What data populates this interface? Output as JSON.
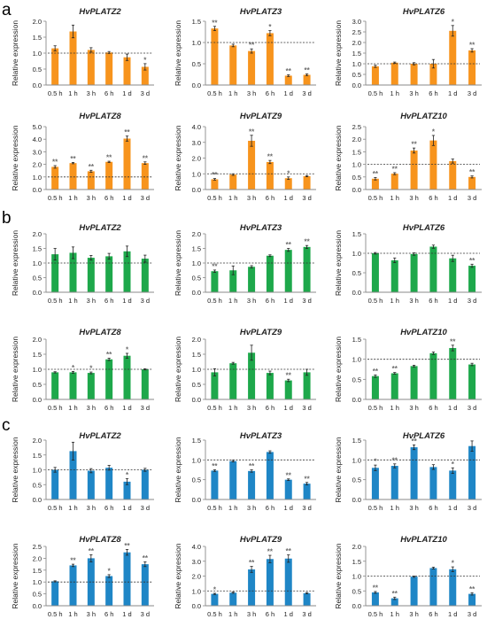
{
  "figure": {
    "panel_labels": [
      "a",
      "b",
      "c"
    ],
    "panel_colors": [
      "#F7941D",
      "#1EA84B",
      "#1F86C6"
    ],
    "ylabel": "Relative expression",
    "categories": [
      "0.5 h",
      "1 h",
      "3 h",
      "6 h",
      "1 d",
      "3 d"
    ],
    "reference_line": 1.0
  },
  "chart_data": [
    {
      "type": "bar",
      "panel": "a",
      "title": "HvPLATZ2",
      "ylabel": "Relative expression",
      "categories": [
        "0.5 h",
        "1 h",
        "3 h",
        "6 h",
        "1 d",
        "3 d"
      ],
      "ylim": [
        0,
        2.0
      ],
      "yticks": [
        "0.0",
        "0.5",
        "1.0",
        "1.5",
        "2.0"
      ],
      "values": [
        1.15,
        1.68,
        1.1,
        1.02,
        0.87,
        0.57
      ],
      "errors": [
        0.08,
        0.2,
        0.07,
        0.03,
        0.1,
        0.1
      ],
      "significance": [
        "",
        "",
        "",
        "",
        "",
        "*"
      ]
    },
    {
      "type": "bar",
      "panel": "a",
      "title": "HvPLATZ3",
      "ylabel": "Relative expression",
      "categories": [
        "0.5 h",
        "1 h",
        "3 h",
        "6 h",
        "1 d",
        "3 d"
      ],
      "ylim": [
        0,
        1.5
      ],
      "yticks": [
        "0.0",
        "0.5",
        "1.0",
        "1.5"
      ],
      "values": [
        1.33,
        0.93,
        0.8,
        1.22,
        0.22,
        0.24
      ],
      "errors": [
        0.05,
        0.03,
        0.05,
        0.06,
        0.02,
        0.02
      ],
      "significance": [
        "**",
        "",
        "**",
        "*",
        "**",
        "**"
      ]
    },
    {
      "type": "bar",
      "panel": "a",
      "title": "HvPLATZ6",
      "ylabel": "Relative expression",
      "categories": [
        "0.5 h",
        "1 h",
        "3 h",
        "6 h",
        "1 d",
        "3 d"
      ],
      "ylim": [
        0,
        3.0
      ],
      "yticks": [
        "0.0",
        "0.5",
        "1.0",
        "1.5",
        "2.0",
        "2.5",
        "3.0"
      ],
      "values": [
        0.88,
        1.05,
        1.0,
        1.0,
        2.55,
        1.63
      ],
      "errors": [
        0.05,
        0.03,
        0.05,
        0.2,
        0.25,
        0.08
      ],
      "significance": [
        "",
        "",
        "",
        "",
        "*",
        "**"
      ]
    },
    {
      "type": "bar",
      "panel": "a",
      "title": "HvPLATZ8",
      "ylabel": "Relative expression",
      "categories": [
        "0.5 h",
        "1 h",
        "3 h",
        "6 h",
        "1 d",
        "3 d"
      ],
      "ylim": [
        0,
        5.0
      ],
      "yticks": [
        "0.0",
        "1.0",
        "2.0",
        "3.0",
        "4.0",
        "5.0"
      ],
      "values": [
        1.8,
        2.1,
        1.45,
        2.2,
        4.05,
        2.1
      ],
      "errors": [
        0.1,
        0.05,
        0.08,
        0.05,
        0.2,
        0.1
      ],
      "significance": [
        "**",
        "**",
        "**",
        "**",
        "**",
        "**"
      ]
    },
    {
      "type": "bar",
      "panel": "a",
      "title": "HvPLATZ9",
      "ylabel": "Relative expression",
      "categories": [
        "0.5 h",
        "1 h",
        "3 h",
        "6 h",
        "1 d",
        "3 d"
      ],
      "ylim": [
        0,
        4.0
      ],
      "yticks": [
        "0.0",
        "1.0",
        "2.0",
        "3.0",
        "4.0"
      ],
      "values": [
        0.65,
        0.95,
        3.1,
        1.75,
        0.72,
        0.85
      ],
      "errors": [
        0.05,
        0.05,
        0.35,
        0.1,
        0.08,
        0.04
      ],
      "significance": [
        "**",
        "",
        "**",
        "**",
        "*",
        ""
      ]
    },
    {
      "type": "bar",
      "panel": "a",
      "title": "HvPLATZ10",
      "ylabel": "Relative expression",
      "categories": [
        "0.5 h",
        "1 h",
        "3 h",
        "6 h",
        "1 d",
        "3 d"
      ],
      "ylim": [
        0,
        2.5
      ],
      "yticks": [
        "0.0",
        "0.5",
        "1.0",
        "1.5",
        "2.0",
        "2.5"
      ],
      "values": [
        0.43,
        0.63,
        1.55,
        1.95,
        1.13,
        0.5
      ],
      "errors": [
        0.05,
        0.04,
        0.1,
        0.2,
        0.08,
        0.04
      ],
      "significance": [
        "**",
        "**",
        "**",
        "*",
        "",
        "**"
      ]
    },
    {
      "type": "bar",
      "panel": "b",
      "title": "HvPLATZ2",
      "ylabel": "Relative expression",
      "categories": [
        "0.5 h",
        "1 h",
        "3 h",
        "6 h",
        "1 d",
        "3 d"
      ],
      "ylim": [
        0,
        2.0
      ],
      "yticks": [
        "0.0",
        "0.5",
        "1.0",
        "1.5",
        "2.0"
      ],
      "values": [
        1.3,
        1.35,
        1.18,
        1.23,
        1.4,
        1.15
      ],
      "errors": [
        0.2,
        0.2,
        0.08,
        0.1,
        0.18,
        0.12
      ],
      "significance": [
        "",
        "",
        "",
        "",
        "",
        ""
      ]
    },
    {
      "type": "bar",
      "panel": "b",
      "title": "HvPLATZ3",
      "ylabel": "Relative expression",
      "categories": [
        "0.5 h",
        "1 h",
        "3 h",
        "6 h",
        "1 d",
        "3 d"
      ],
      "ylim": [
        0,
        2.0
      ],
      "yticks": [
        "0.0",
        "0.5",
        "1.0",
        "1.5",
        "2.0"
      ],
      "values": [
        0.72,
        0.75,
        0.87,
        1.25,
        1.45,
        1.55
      ],
      "errors": [
        0.04,
        0.15,
        0.04,
        0.03,
        0.05,
        0.05
      ],
      "significance": [
        "**",
        "",
        "",
        "",
        "**",
        "**"
      ]
    },
    {
      "type": "bar",
      "panel": "b",
      "title": "HvPLATZ6",
      "ylabel": "Relative expression",
      "categories": [
        "0.5 h",
        "1 h",
        "3 h",
        "6 h",
        "1 d",
        "3 d"
      ],
      "ylim": [
        0,
        1.5
      ],
      "yticks": [
        "0.0",
        "0.5",
        "1.0",
        "1.5"
      ],
      "values": [
        1.0,
        0.82,
        0.98,
        1.17,
        0.87,
        0.68
      ],
      "errors": [
        0.02,
        0.06,
        0.03,
        0.04,
        0.08,
        0.04
      ],
      "significance": [
        "",
        "",
        "",
        "",
        "",
        "**"
      ]
    },
    {
      "type": "bar",
      "panel": "b",
      "title": "HvPLATZ8",
      "ylabel": "Relative expression",
      "categories": [
        "0.5 h",
        "1 h",
        "3 h",
        "6 h",
        "1 d",
        "3 d"
      ],
      "ylim": [
        0,
        2.0
      ],
      "yticks": [
        "0.0",
        "0.5",
        "1.0",
        "1.5",
        "2.0"
      ],
      "values": [
        0.9,
        0.9,
        0.88,
        1.33,
        1.45,
        1.0
      ],
      "errors": [
        0.02,
        0.03,
        0.03,
        0.04,
        0.08,
        0.02
      ],
      "significance": [
        "",
        "*",
        "*",
        "**",
        "*",
        ""
      ]
    },
    {
      "type": "bar",
      "panel": "b",
      "title": "HvPLATZ9",
      "ylabel": "Relative expression",
      "categories": [
        "0.5 h",
        "1 h",
        "3 h",
        "6 h",
        "1 d",
        "3 d"
      ],
      "ylim": [
        0,
        2.0
      ],
      "yticks": [
        "0.0",
        "0.5",
        "1.0",
        "1.5",
        "2.0"
      ],
      "values": [
        0.9,
        1.2,
        1.55,
        0.88,
        0.63,
        0.9
      ],
      "errors": [
        0.12,
        0.03,
        0.25,
        0.06,
        0.04,
        0.1
      ],
      "significance": [
        "",
        "",
        "",
        "",
        "**",
        ""
      ]
    },
    {
      "type": "bar",
      "panel": "b",
      "title": "HvPLATZ10",
      "ylabel": "Relative expression",
      "categories": [
        "0.5 h",
        "1 h",
        "3 h",
        "6 h",
        "1 d",
        "3 d"
      ],
      "ylim": [
        0,
        1.5
      ],
      "yticks": [
        "0.0",
        "0.5",
        "1.0",
        "1.5"
      ],
      "values": [
        0.58,
        0.65,
        0.83,
        1.15,
        1.28,
        0.87
      ],
      "errors": [
        0.03,
        0.02,
        0.02,
        0.03,
        0.07,
        0.03
      ],
      "significance": [
        "**",
        "**",
        "",
        "",
        "**",
        ""
      ]
    },
    {
      "type": "bar",
      "panel": "c",
      "title": "HvPLATZ2",
      "ylabel": "Relative expression",
      "categories": [
        "0.5 h",
        "1 h",
        "3 h",
        "6 h",
        "1 d",
        "3 d"
      ],
      "ylim": [
        0,
        2.0
      ],
      "yticks": [
        "0.0",
        "0.5",
        "1.0",
        "1.5",
        "2.0"
      ],
      "values": [
        1.0,
        1.63,
        0.97,
        1.07,
        0.6,
        1.0
      ],
      "errors": [
        0.08,
        0.3,
        0.07,
        0.08,
        0.1,
        0.05
      ],
      "significance": [
        "",
        "",
        "",
        "",
        "*",
        ""
      ]
    },
    {
      "type": "bar",
      "panel": "c",
      "title": "HvPLATZ3",
      "ylabel": "Relative expression",
      "categories": [
        "0.5 h",
        "1 h",
        "3 h",
        "6 h",
        "1 d",
        "3 d"
      ],
      "ylim": [
        0,
        1.5
      ],
      "yticks": [
        "0.0",
        "0.5",
        "1.0",
        "1.5"
      ],
      "values": [
        0.73,
        0.97,
        0.72,
        1.2,
        0.5,
        0.4
      ],
      "errors": [
        0.02,
        0.02,
        0.03,
        0.03,
        0.02,
        0.03
      ],
      "significance": [
        "**",
        "",
        "**",
        "",
        "**",
        "**"
      ]
    },
    {
      "type": "bar",
      "panel": "c",
      "title": "HvPLATZ6",
      "ylabel": "Relative expression",
      "categories": [
        "0.5 h",
        "1 h",
        "3 h",
        "6 h",
        "1 d",
        "3 d"
      ],
      "ylim": [
        0,
        1.5
      ],
      "yticks": [
        "0.0",
        "0.5",
        "1.0",
        "1.5"
      ],
      "values": [
        0.8,
        0.85,
        1.32,
        0.82,
        0.73,
        1.35
      ],
      "errors": [
        0.07,
        0.05,
        0.06,
        0.06,
        0.07,
        0.13
      ],
      "significance": [
        "*",
        "**",
        "**",
        "",
        "*",
        ""
      ]
    },
    {
      "type": "bar",
      "panel": "c",
      "title": "HvPLATZ8",
      "ylabel": "Relative expression",
      "categories": [
        "0.5 h",
        "1 h",
        "3 h",
        "6 h",
        "1 d",
        "3 d"
      ],
      "ylim": [
        0,
        2.5
      ],
      "yticks": [
        "0.0",
        "0.5",
        "1.0",
        "1.5",
        "2.0",
        "2.5"
      ],
      "values": [
        1.03,
        1.7,
        2.0,
        1.25,
        2.25,
        1.75
      ],
      "errors": [
        0.02,
        0.05,
        0.15,
        0.06,
        0.12,
        0.1
      ],
      "significance": [
        "",
        "**",
        "**",
        "*",
        "**",
        "**"
      ]
    },
    {
      "type": "bar",
      "panel": "c",
      "title": "HvPLATZ9",
      "ylabel": "Relative expression",
      "categories": [
        "0.5 h",
        "1 h",
        "3 h",
        "6 h",
        "1 d",
        "3 d"
      ],
      "ylim": [
        0,
        4.0
      ],
      "yticks": [
        "0.0",
        "1.0",
        "2.0",
        "3.0",
        "4.0"
      ],
      "values": [
        0.8,
        0.88,
        2.45,
        3.15,
        3.18,
        0.85
      ],
      "errors": [
        0.04,
        0.04,
        0.2,
        0.25,
        0.25,
        0.04
      ],
      "significance": [
        "*",
        "",
        "**",
        "**",
        "**",
        ""
      ]
    },
    {
      "type": "bar",
      "panel": "c",
      "title": "HvPLATZ10",
      "ylabel": "Relative expression",
      "categories": [
        "0.5 h",
        "1 h",
        "3 h",
        "6 h",
        "1 d",
        "3 d"
      ],
      "ylim": [
        0,
        2.0
      ],
      "yticks": [
        "0.0",
        "0.5",
        "1.0",
        "1.5",
        "2.0"
      ],
      "values": [
        0.45,
        0.25,
        0.98,
        1.27,
        1.23,
        0.4
      ],
      "errors": [
        0.03,
        0.04,
        0.02,
        0.03,
        0.08,
        0.04
      ],
      "significance": [
        "**",
        "**",
        "",
        "",
        "*",
        "**"
      ]
    }
  ]
}
